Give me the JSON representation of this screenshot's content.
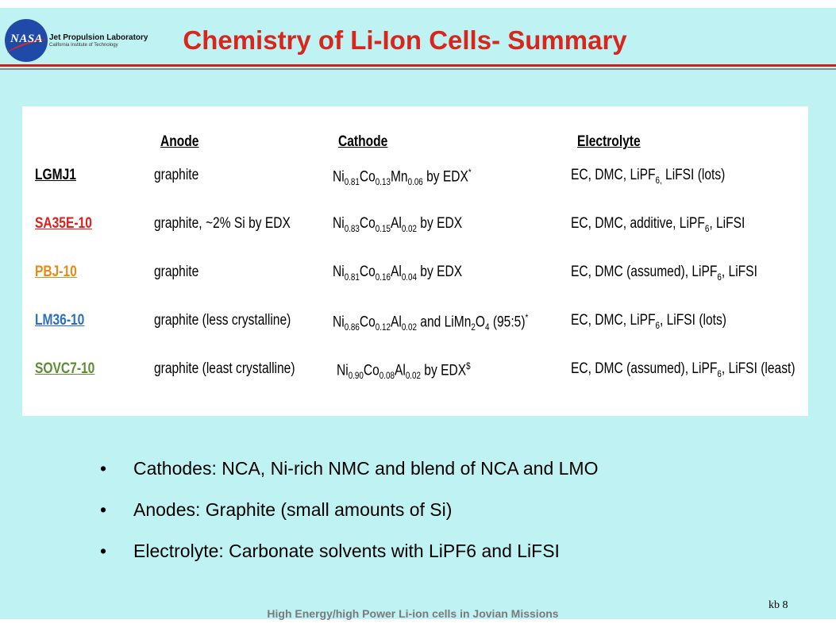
{
  "header": {
    "logo_text": "NASA",
    "lab_name": "Jet Propulsion Laboratory",
    "lab_sub": "California Institute of Technology",
    "title": "Chemistry  of Li-Ion Cells- Summary"
  },
  "table": {
    "headers": {
      "anode": "Anode",
      "cathode": "Cathode",
      "electrolyte": "Electrolyte"
    },
    "rows": [
      {
        "name": "LGMJ1",
        "color": "#000000",
        "anode": "graphite",
        "cathode": {
          "a": "Ni",
          "a_sub": "0.81",
          "b": "Co",
          "b_sub": "0.13",
          "c": "Mn",
          "c_sub": "0.06",
          "tail": " by EDX",
          "sup": "*"
        },
        "electrolyte": {
          "pre": "EC, DMC, LiPF",
          "sub": "6,",
          "post": " LiFSI (lots)"
        }
      },
      {
        "name": "SA35E-10",
        "color": "#e0201b",
        "anode": "graphite, ~2% Si by EDX",
        "cathode": {
          "a": "Ni",
          "a_sub": "0.83",
          "b": "Co",
          "b_sub": "0.15",
          "c": "Al",
          "c_sub": "0.02",
          "tail": " by EDX",
          "sup": ""
        },
        "electrolyte": {
          "pre": "EC, DMC, additive, LiPF",
          "sub": "6",
          "post": ", LiFSI"
        }
      },
      {
        "name": "PBJ-10",
        "color": "#e8891a",
        "anode": "graphite",
        "cathode": {
          "a": "Ni",
          "a_sub": "0.81",
          "b": "Co",
          "b_sub": "0.16",
          "c": "Al",
          "c_sub": "0.04",
          "tail": " by EDX",
          "sup": ""
        },
        "electrolyte": {
          "pre": "EC, DMC (assumed), LiPF",
          "sub": "6",
          "post": ", LiFSI"
        }
      },
      {
        "name": "LM36-10",
        "color": "#2a6fc2",
        "anode": "graphite (less crystalline)",
        "cathode": {
          "a": "Ni",
          "a_sub": "0.86",
          "b": "Co",
          "b_sub": "0.12",
          "c": "Al",
          "c_sub": "0.02",
          "tail": " and LiMn",
          "d_sub": "2",
          "e": "O",
          "e_sub": "4",
          "f": "  (95:5)",
          "sup": "*"
        },
        "electrolyte": {
          "pre": "EC, DMC, LiPF",
          "sub": "6",
          "post": ", LiFSI (lots)"
        }
      },
      {
        "name": "SOVC7-10",
        "color": "#5e8d34",
        "anode": "graphite (least crystalline)",
        "cathode": {
          "a": "Ni",
          "a_sub": "0.90",
          "b": "Co",
          "b_sub": "0.08",
          "c": "Al",
          "c_sub": "0.02",
          "tail": " by EDX",
          "sup": "$"
        },
        "electrolyte": {
          "pre": "EC, DMC (assumed), LiPF",
          "sub": "6",
          "post": ", LiFSI (least)"
        }
      }
    ]
  },
  "bullets": [
    "Cathodes: NCA, Ni-rich NMC and blend of NCA and LMO",
    "Anodes: Graphite (small amounts of Si)",
    "Electrolyte: Carbonate solvents with LiPF6 and LiFSI"
  ],
  "bullet_glyph": "•",
  "footer": "High Energy/high Power Li-ion cells in Jovian Missions",
  "page_number": "kb 8",
  "colors": {
    "background": "#bff3f3",
    "title": "#d9261c",
    "rule": "#c9211e"
  }
}
